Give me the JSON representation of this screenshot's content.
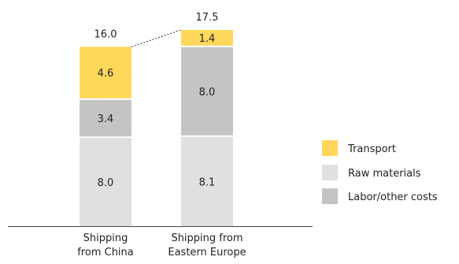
{
  "chart_data": {
    "type": "bar",
    "stacked": true,
    "categories": [
      [
        "Shipping",
        "from China"
      ],
      [
        "Shipping from",
        "Eastern Europe"
      ]
    ],
    "series": [
      {
        "name": "Raw materials",
        "values": [
          8.0,
          8.1
        ],
        "labels": [
          "8.0",
          "8.1"
        ],
        "color": "#e0e0e0"
      },
      {
        "name": "Labor/other costs",
        "values": [
          3.4,
          8.0
        ],
        "labels": [
          "3.4",
          "8.0"
        ],
        "color": "#c4c4c4"
      },
      {
        "name": "Transport",
        "values": [
          4.6,
          1.4
        ],
        "labels": [
          "4.6",
          "1.4"
        ],
        "color": "#ffd75a"
      }
    ],
    "totals": [
      "16.0",
      "17.5"
    ],
    "legend": {
      "placement": "right",
      "items": [
        {
          "name": "Transport",
          "color": "#ffd75a"
        },
        {
          "name": "Raw materials",
          "color": "#e0e0e0"
        },
        {
          "name": "Labor/other costs",
          "color": "#c4c4c4"
        }
      ]
    },
    "connector_line": "dotted, between bar tops",
    "ylim": [
      0,
      17.5
    ],
    "grid": false,
    "title": "",
    "xlabel": "",
    "ylabel": ""
  }
}
